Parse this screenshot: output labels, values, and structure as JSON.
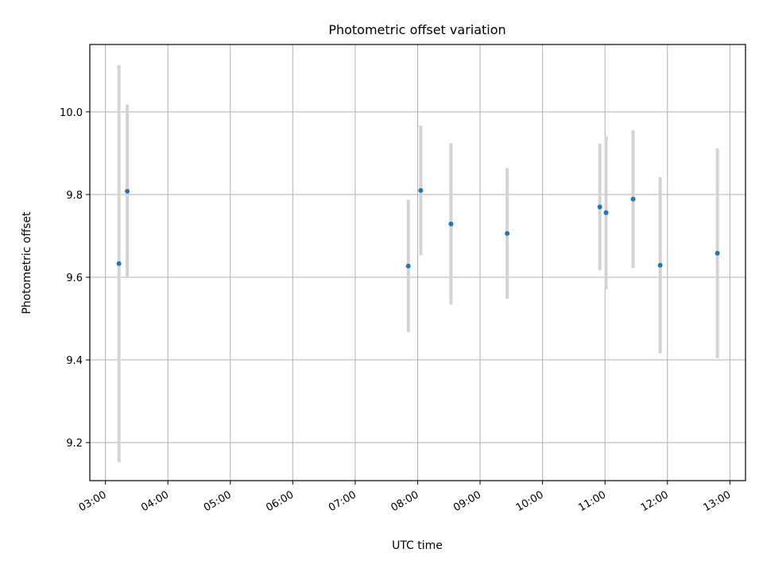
{
  "chart_data": {
    "type": "scatter",
    "title": "Photometric offset variation",
    "xlabel": "UTC time",
    "ylabel": "Photometric offset",
    "grid": true,
    "xlim": [
      "02:45",
      "13:15"
    ],
    "ylim": [
      9.108,
      10.163
    ],
    "x_ticks": [
      "03:00",
      "04:00",
      "05:00",
      "06:00",
      "07:00",
      "08:00",
      "09:00",
      "10:00",
      "11:00",
      "12:00",
      "13:00"
    ],
    "y_ticks": [
      "9.2",
      "9.4",
      "9.6",
      "9.8",
      "10.0"
    ],
    "colors": {
      "marker": "#1f77b4",
      "errorbar": "#d3d3d3",
      "grid": "#b0b0b0"
    },
    "series": [
      {
        "points": [
          {
            "x": "03:13",
            "y": 9.633,
            "err": 0.48
          },
          {
            "x": "03:21",
            "y": 9.808,
            "err": 0.21
          },
          {
            "x": "07:51",
            "y": 9.627,
            "err": 0.16
          },
          {
            "x": "08:03",
            "y": 9.81,
            "err": 0.157
          },
          {
            "x": "08:32",
            "y": 9.729,
            "err": 0.195
          },
          {
            "x": "09:26",
            "y": 9.706,
            "err": 0.158
          },
          {
            "x": "10:55",
            "y": 9.77,
            "err": 0.153
          },
          {
            "x": "11:01",
            "y": 9.756,
            "err": 0.185
          },
          {
            "x": "11:27",
            "y": 9.789,
            "err": 0.167
          },
          {
            "x": "11:53",
            "y": 9.629,
            "err": 0.213
          },
          {
            "x": "12:48",
            "y": 9.658,
            "err": 0.254
          }
        ]
      }
    ]
  }
}
